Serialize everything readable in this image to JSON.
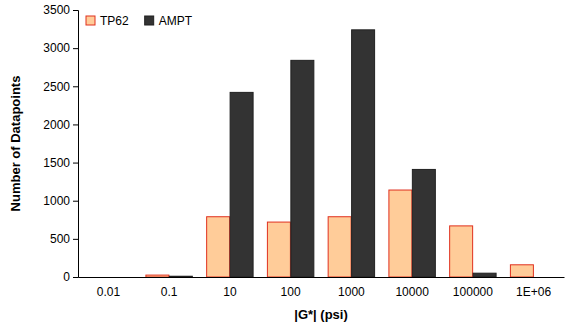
{
  "chart_data": {
    "type": "bar",
    "x_label": "|G*| (psi)",
    "y_label": "Number of Datapoints",
    "categories": [
      "0.01",
      "0.1",
      "10",
      "100",
      "1000",
      "10000",
      "100000",
      "1E+06"
    ],
    "series": [
      {
        "name": "TP62",
        "color": "#ffcc99",
        "values": [
          0,
          25,
          790,
          720,
          790,
          1140,
          670,
          160
        ]
      },
      {
        "name": "AMPT",
        "color": "#333333",
        "values": [
          0,
          10,
          2420,
          2840,
          3240,
          1410,
          50,
          0
        ]
      }
    ],
    "ylim": [
      0,
      3500
    ],
    "yticks": [
      0,
      500,
      1000,
      1500,
      2000,
      2500,
      3000,
      3500
    ],
    "grid": false,
    "legend": "top-left"
  }
}
